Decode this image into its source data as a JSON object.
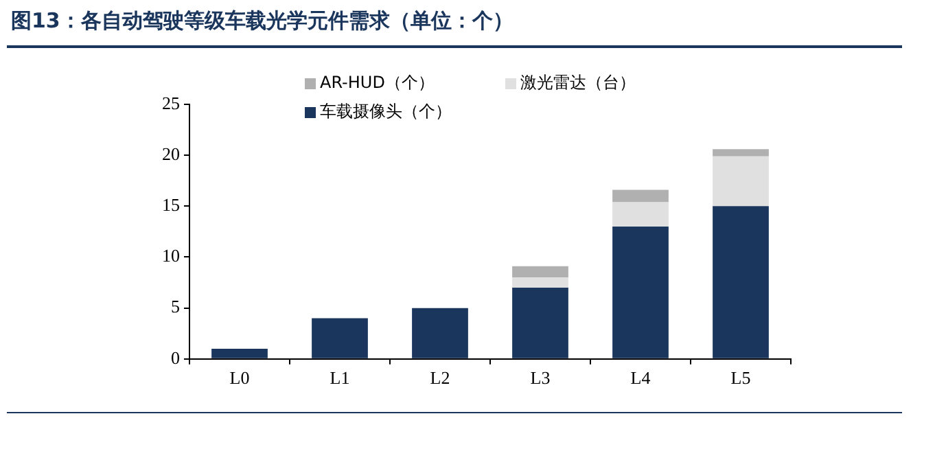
{
  "chart_data": {
    "type": "bar",
    "title": "图13：各自动驾驶等级车载光学元件需求（单位：个）",
    "categories": [
      "L0",
      "L1",
      "L2",
      "L3",
      "L4",
      "L5"
    ],
    "series": [
      {
        "name": "车载摄像头（个）",
        "color": "#1b365d",
        "values": [
          1,
          4,
          5,
          7,
          13,
          15
        ]
      },
      {
        "name": "激光雷达（台）",
        "color": "#e0e0e0",
        "values": [
          null,
          null,
          null,
          1,
          2.4,
          4.9
        ]
      },
      {
        "name": "AR-HUD（个）",
        "color": "#b0b0b0",
        "values": [
          null,
          null,
          null,
          1.1,
          1.2,
          0.7
        ]
      }
    ],
    "stacked": true,
    "ylim": [
      0,
      25
    ],
    "yticks": [
      0,
      5,
      10,
      15,
      20,
      25
    ],
    "grid": false,
    "legend": "top left"
  }
}
